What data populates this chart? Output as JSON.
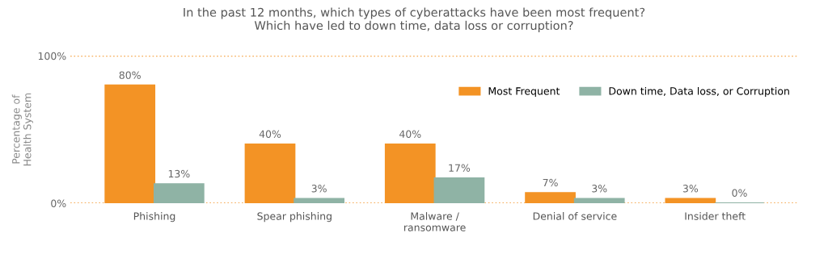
{
  "chart_data": {
    "type": "bar",
    "title": "In the past 12 months, which types of cyberattacks have been most frequent?\nWhich have led to down time, data loss or corruption?",
    "ylabel": "Percentage of\nHealth System",
    "categories": [
      "Phishing",
      "Spear phishing",
      "Malware /\nransomware",
      "Denial of service",
      "Insider theft"
    ],
    "series": [
      {
        "name": "Most Frequent",
        "color": "#f39325",
        "values": [
          80,
          40,
          40,
          7,
          3
        ],
        "value_labels": [
          "80%",
          "40%",
          "40%",
          "7%",
          "3%"
        ]
      },
      {
        "name": "Down time, Data loss, or Corruption",
        "color": "#8fb3a5",
        "values": [
          13,
          3,
          17,
          3,
          0
        ],
        "value_labels": [
          "13%",
          "3%",
          "17%",
          "3%",
          "0%"
        ]
      }
    ],
    "ylim": [
      0,
      100
    ],
    "yticks": [
      {
        "value": 0,
        "label": "0%"
      },
      {
        "value": 100,
        "label": "100%"
      }
    ],
    "grid": "y",
    "legend": "top right"
  }
}
